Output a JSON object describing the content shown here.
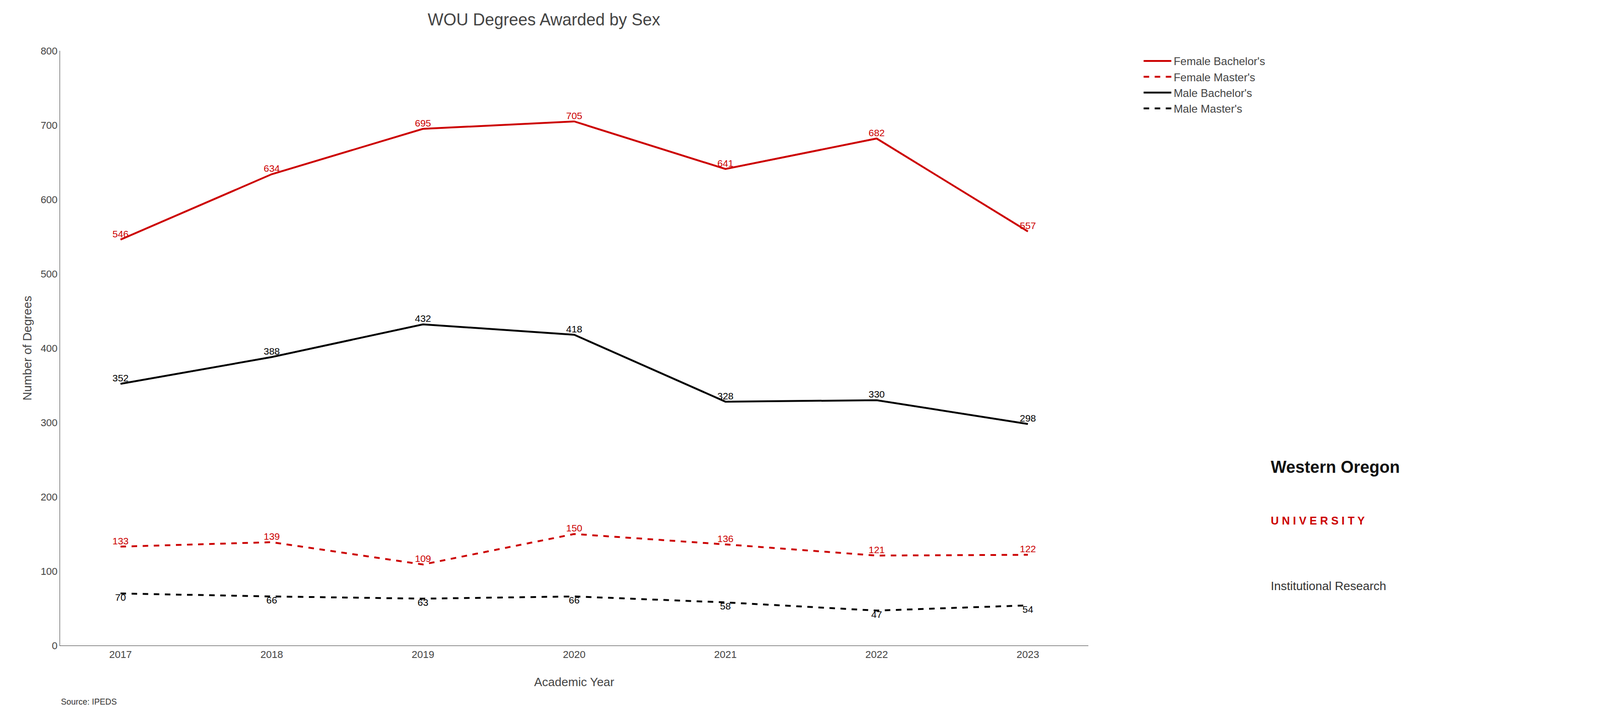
{
  "chart_data": {
    "type": "line",
    "title": "WOU Degrees Awarded by Sex",
    "xlabel": "Academic Year",
    "ylabel": "Number of Degrees",
    "x": [
      2017,
      2018,
      2019,
      2020,
      2021,
      2022,
      2023
    ],
    "series": [
      {
        "name": "Female Bachelor's",
        "color": "#CC0000",
        "line_style": "solid",
        "values": [
          546,
          634,
          695,
          705,
          641,
          682,
          557
        ]
      },
      {
        "name": "Female Master's",
        "color": "#CC0000",
        "line_style": "dashed",
        "values": [
          133,
          139,
          109,
          150,
          136,
          121,
          122
        ]
      },
      {
        "name": "Male Bachelor's",
        "color": "#000000",
        "line_style": "solid",
        "values": [
          352,
          388,
          432,
          418,
          328,
          330,
          298
        ]
      },
      {
        "name": "Male Master's",
        "color": "#000000",
        "line_style": "dashed",
        "values": [
          70,
          66,
          63,
          66,
          58,
          47,
          54
        ]
      }
    ],
    "xlim": [
      2016.6,
      2023.4
    ],
    "xticks": [
      2017,
      2018,
      2019,
      2020,
      2021,
      2022,
      2023
    ],
    "ylim": [
      0,
      800
    ],
    "yticks": [
      0,
      100,
      200,
      300,
      400,
      500,
      600,
      700,
      800
    ],
    "grid": false,
    "legend": "upper right",
    "data_labels": true,
    "annotations": [
      "Source: IPEDS",
      "Western Oregon",
      "U N I V E R S I T Y",
      "Institutional Research"
    ]
  }
}
